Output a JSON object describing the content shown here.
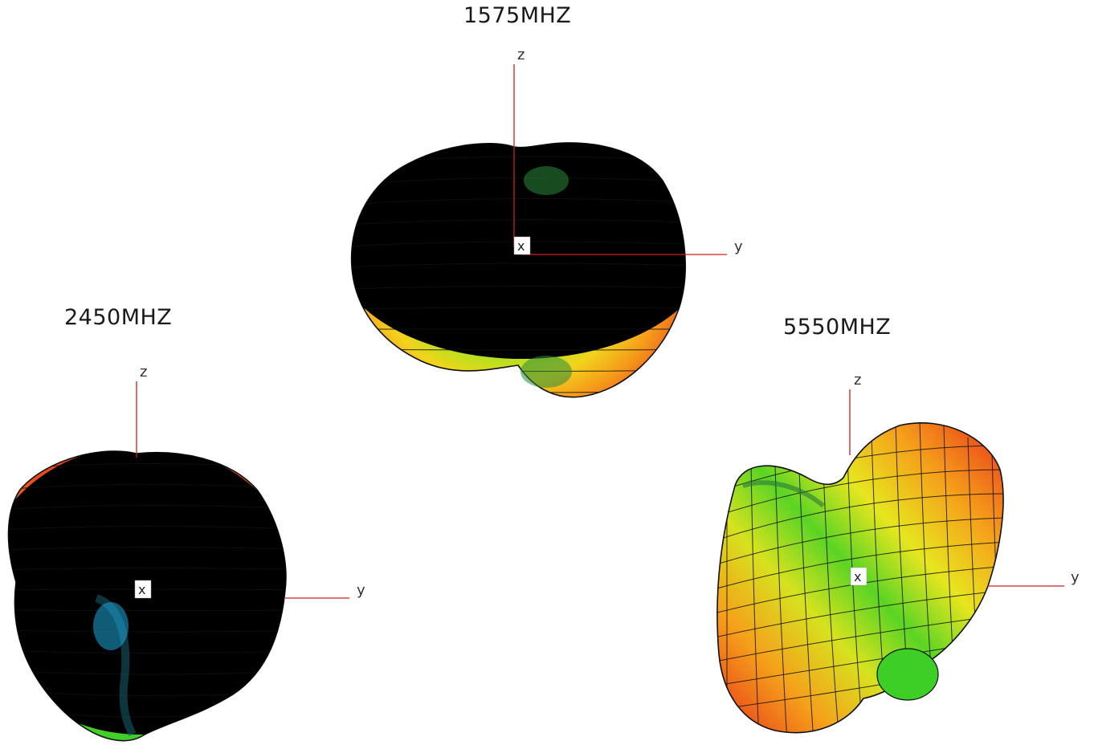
{
  "patterns": [
    {
      "frequency_label": "1575MHZ",
      "axes": {
        "z": "z",
        "y": "y",
        "x": "x"
      }
    },
    {
      "frequency_label": "2450MHZ",
      "axes": {
        "z": "z",
        "y": "y",
        "x": "x"
      }
    },
    {
      "frequency_label": "5550MHZ",
      "axes": {
        "z": "z",
        "y": "y",
        "x": "x"
      }
    }
  ],
  "colors": {
    "high_gain": "#e8321b",
    "mid_high": "#f59a1a",
    "mid": "#e6e61e",
    "mid_low": "#3ecf26",
    "low_gain": "#1ea8d8",
    "mesh": "#111111",
    "axis": "#cc1f1f"
  }
}
